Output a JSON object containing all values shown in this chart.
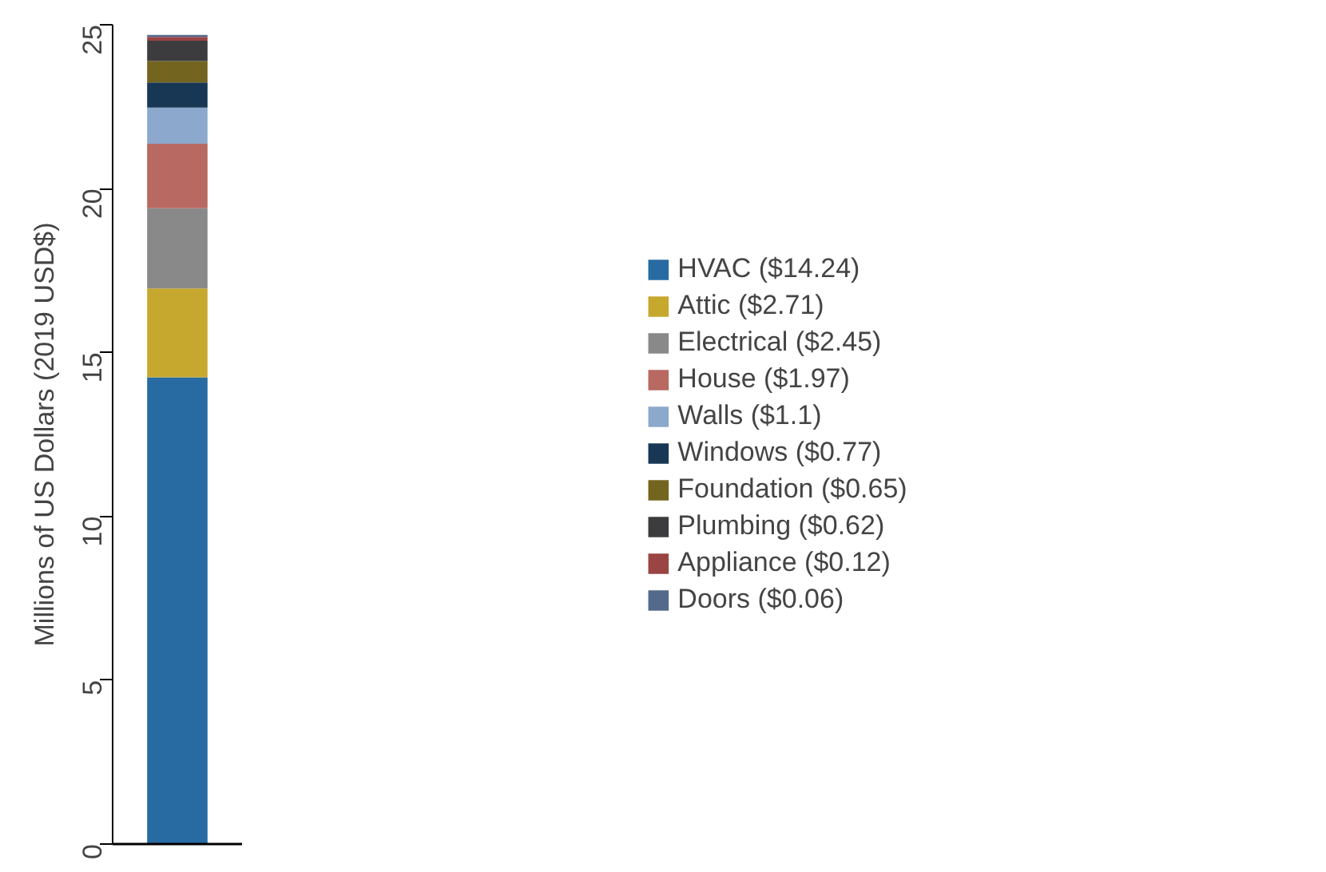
{
  "chart_data": {
    "type": "bar",
    "stacked": true,
    "categories": [
      null
    ],
    "ylabel": "Millions of US Dollars (2019 USD$)",
    "ylim": [
      0,
      25
    ],
    "yticks": [
      0,
      5,
      10,
      15,
      20,
      25
    ],
    "grid": false,
    "legend": "right",
    "series": [
      {
        "name": "HVAC ($14.24)",
        "color": "#286ba3",
        "values": [
          14.24
        ]
      },
      {
        "name": "Attic ($2.71)",
        "color": "#c7a82e",
        "values": [
          2.71
        ]
      },
      {
        "name": "Electrical ($2.45)",
        "color": "#898989",
        "values": [
          2.45
        ]
      },
      {
        "name": "House ($1.97)",
        "color": "#b76962",
        "values": [
          1.97
        ]
      },
      {
        "name": "Walls ($1.1)",
        "color": "#8ca8cc",
        "values": [
          1.1
        ]
      },
      {
        "name": "Windows ($0.77)",
        "color": "#183754",
        "values": [
          0.77
        ]
      },
      {
        "name": "Foundation ($0.65)",
        "color": "#736520",
        "values": [
          0.65
        ]
      },
      {
        "name": "Plumbing ($0.62)",
        "color": "#3c3c3e",
        "values": [
          0.62
        ]
      },
      {
        "name": "Appliance ($0.12)",
        "color": "#9a4444",
        "values": [
          0.12
        ]
      },
      {
        "name": "Doors ($0.06)",
        "color": "#546a8a",
        "values": [
          0.06
        ]
      }
    ]
  }
}
